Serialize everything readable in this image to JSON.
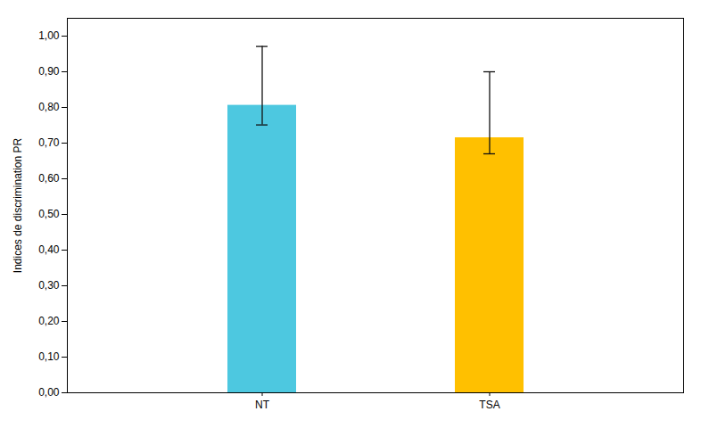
{
  "chart_data": {
    "type": "bar",
    "categories": [
      "NT",
      "TSA"
    ],
    "values": [
      0.806,
      0.715
    ],
    "errors_upper": [
      0.165,
      0.185
    ],
    "errors_lower": [
      0.055,
      0.045
    ],
    "colors": [
      "#4DC8E0",
      "#FFC000"
    ],
    "ylabel": "Indices de discrimination PR",
    "ylim": [
      0.0,
      1.05
    ],
    "yticks": [
      {
        "value": 0.0,
        "label": "0,00"
      },
      {
        "value": 0.1,
        "label": "0,10"
      },
      {
        "value": 0.2,
        "label": "0,20"
      },
      {
        "value": 0.3,
        "label": "0,30"
      },
      {
        "value": 0.4,
        "label": "0,40"
      },
      {
        "value": 0.5,
        "label": "0,50"
      },
      {
        "value": 0.6,
        "label": "0,60"
      },
      {
        "value": 0.7,
        "label": "0,70"
      },
      {
        "value": 0.8,
        "label": "0,80"
      },
      {
        "value": 0.9,
        "label": "0,90"
      },
      {
        "value": 1.0,
        "label": "1,00"
      }
    ],
    "grid": false
  }
}
